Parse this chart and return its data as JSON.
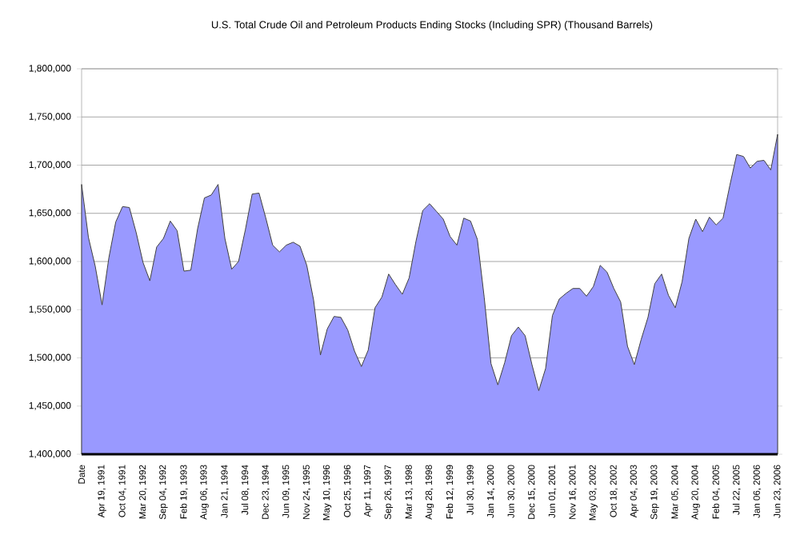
{
  "chart_data": {
    "type": "area",
    "title": "U.S. Total Crude Oil and Petroleum Products Ending Stocks (Including SPR) (Thousand Barrels)",
    "categories": [
      "Date",
      null,
      null,
      "Apr 19, 1991",
      null,
      null,
      "Oct 04, 1991",
      null,
      null,
      "Mar 20, 1992",
      null,
      null,
      "Sep 04, 1992",
      null,
      null,
      "Feb 19, 1993",
      null,
      null,
      "Aug 06, 1993",
      null,
      null,
      "Jan 21, 1994",
      null,
      null,
      "Jul 08, 1994",
      null,
      null,
      "Dec 23, 1994",
      null,
      null,
      "Jun 09, 1995",
      null,
      null,
      "Nov 24, 1995",
      null,
      null,
      "May 10, 1996",
      null,
      null,
      "Oct 25, 1996",
      null,
      null,
      "Apr 11, 1997",
      null,
      null,
      "Sep 26, 1997",
      null,
      null,
      "Mar 13, 1998",
      null,
      null,
      "Aug 28, 1998",
      null,
      null,
      "Feb 12, 1999",
      null,
      null,
      "Jul 30, 1999",
      null,
      null,
      "Jan 14, 2000",
      null,
      null,
      "Jun 30, 2000",
      null,
      null,
      "Dec 15, 2000",
      null,
      null,
      "Jun 01, 2001",
      null,
      null,
      "Nov 16, 2001",
      null,
      null,
      "May 03, 2002",
      null,
      null,
      "Oct 18, 2002",
      null,
      null,
      "Apr 04, 2003",
      null,
      null,
      "Sep 19, 2003",
      null,
      null,
      "Mar 05, 2004",
      null,
      null,
      "Aug 20, 2004",
      null,
      null,
      "Feb 04, 2005",
      null,
      null,
      "Jul 22, 2005",
      null,
      null,
      "Jan 06, 2006",
      null,
      null,
      "Jun 23, 2006"
    ],
    "values": [
      1680000,
      1625000,
      1595000,
      1555000,
      1604000,
      1641000,
      1657000,
      1656000,
      1630000,
      1599000,
      1580000,
      1615000,
      1624000,
      1642000,
      1632000,
      1590000,
      1591000,
      1634000,
      1666000,
      1669000,
      1680000,
      1624000,
      1592000,
      1600000,
      1633000,
      1670000,
      1671000,
      1645000,
      1617000,
      1610000,
      1617000,
      1620000,
      1616000,
      1596000,
      1560000,
      1503000,
      1530000,
      1543000,
      1542000,
      1529000,
      1507000,
      1491000,
      1508000,
      1552000,
      1563000,
      1587000,
      1576000,
      1566000,
      1583000,
      1621000,
      1653000,
      1660000,
      1652000,
      1644000,
      1626000,
      1617000,
      1645000,
      1642000,
      1623000,
      1563000,
      1494000,
      1472000,
      1495000,
      1523000,
      1532000,
      1523000,
      1493000,
      1466000,
      1489000,
      1544000,
      1561000,
      1567000,
      1572000,
      1572000,
      1564000,
      1574000,
      1596000,
      1589000,
      1572000,
      1558000,
      1512000,
      1493000,
      1519000,
      1542000,
      1577000,
      1587000,
      1565000,
      1552000,
      1579000,
      1624000,
      1644000,
      1631000,
      1646000,
      1638000,
      1645000,
      1679000,
      1711000,
      1709000,
      1697000,
      1704000,
      1705000,
      1695000,
      1732000
    ],
    "color": "#9999ff",
    "ylim": [
      1400000,
      1800000
    ],
    "yticks": [
      {
        "value": 1400000,
        "label": "1,400,000"
      },
      {
        "value": 1450000,
        "label": "1,450,000"
      },
      {
        "value": 1500000,
        "label": "1,500,000"
      },
      {
        "value": 1550000,
        "label": "1,550,000"
      },
      {
        "value": 1600000,
        "label": "1,600,000"
      },
      {
        "value": 1650000,
        "label": "1,650,000"
      },
      {
        "value": 1700000,
        "label": "1,700,000"
      },
      {
        "value": 1750000,
        "label": "1,750,000"
      },
      {
        "value": 1800000,
        "label": "1,800,000"
      }
    ],
    "grid": "y"
  }
}
